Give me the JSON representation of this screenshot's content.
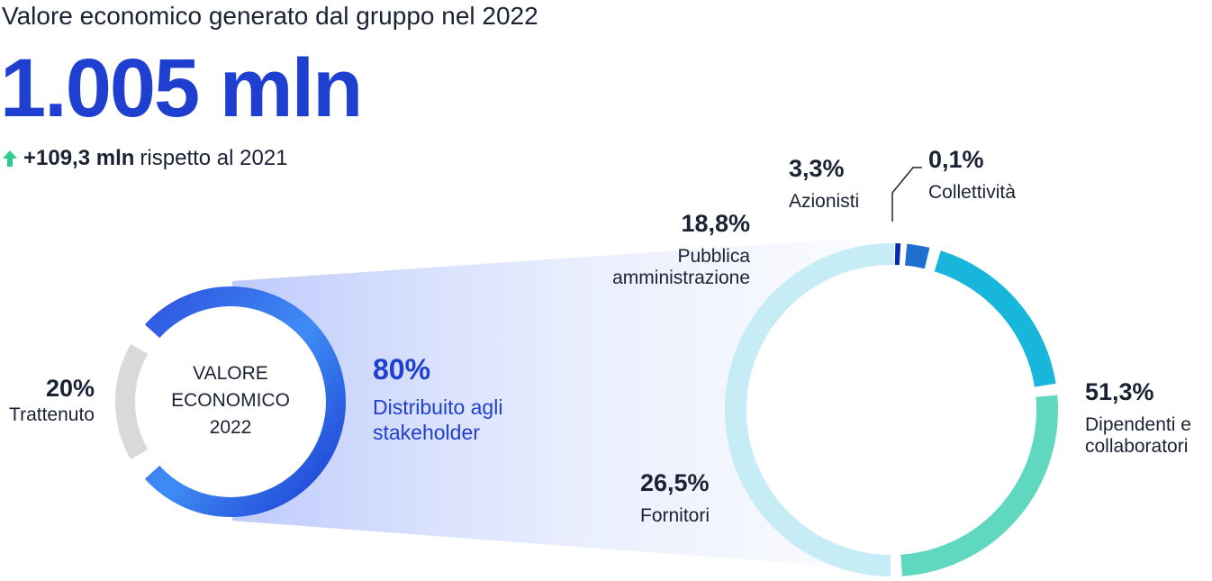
{
  "header": {
    "title": "Valore economico generato dal gruppo nel 2022",
    "total": "1.005 mln",
    "delta_value": "+109,3 mln",
    "delta_text": "rispetto al 2021",
    "delta_icon": "arrow-up-icon",
    "delta_color": "#2ecc8a"
  },
  "chart_data": [
    {
      "type": "pie",
      "center_label": [
        "VALORE",
        "ECONOMICO",
        "2022"
      ],
      "categories": [
        "Distribuito agli stakeholder",
        "Trattenuto"
      ],
      "values": [
        80,
        20
      ],
      "labels": [
        {
          "pct": "80%",
          "name": [
            "Distribuito agli",
            "stakeholder"
          ]
        },
        {
          "pct": "20%",
          "name": [
            "Trattenuto"
          ]
        }
      ],
      "colors": [
        "#2d5ee8",
        "#d9d9d9"
      ]
    },
    {
      "type": "pie",
      "categories": [
        "Dipendenti e collaboratori",
        "Fornitori",
        "Pubblica amministrazione",
        "Azionisti",
        "Collettività"
      ],
      "values": [
        51.3,
        26.5,
        18.8,
        3.3,
        0.1
      ],
      "labels": [
        {
          "pct": "51,3%",
          "name": [
            "Dipendenti e",
            "collaboratori"
          ]
        },
        {
          "pct": "26,5%",
          "name": [
            "Fornitori"
          ]
        },
        {
          "pct": "18,8%",
          "name": [
            "Pubblica",
            "amministrazione"
          ]
        },
        {
          "pct": "3,3%",
          "name": [
            "Azionisti"
          ]
        },
        {
          "pct": "0,1%",
          "name": [
            "Collettività"
          ]
        }
      ],
      "colors": [
        "#c6ecf5",
        "#5fd8bf",
        "#19b6dc",
        "#1e6fd0",
        "#0a2aa8"
      ]
    }
  ]
}
